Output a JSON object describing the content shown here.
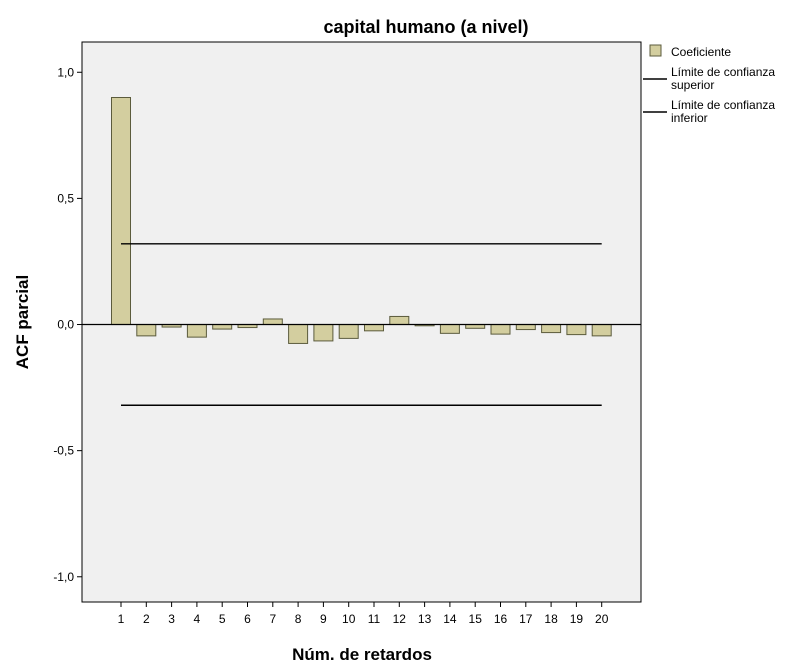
{
  "chart_data": {
    "type": "bar",
    "title": "capital humano (a nivel)",
    "xlabel": "Núm. de retardos",
    "ylabel": "ACF parcial",
    "categories": [
      "1",
      "2",
      "3",
      "4",
      "5",
      "6",
      "7",
      "8",
      "9",
      "10",
      "11",
      "12",
      "13",
      "14",
      "15",
      "16",
      "17",
      "18",
      "19",
      "20"
    ],
    "series": [
      {
        "name": "Coeficiente",
        "values": [
          0.9,
          -0.045,
          -0.01,
          -0.05,
          -0.018,
          -0.012,
          0.022,
          -0.075,
          -0.065,
          -0.055,
          -0.025,
          0.032,
          -0.005,
          -0.035,
          -0.015,
          -0.038,
          -0.02,
          -0.032,
          -0.04,
          -0.045
        ]
      }
    ],
    "confidence_limits": {
      "upper": {
        "name": "Límite de confianza superior",
        "value": 0.32
      },
      "lower": {
        "name": "Límite de confianza inferior",
        "value": -0.32
      }
    },
    "ylim": [
      -1.1,
      1.12
    ],
    "yticks": [
      1.0,
      0.5,
      0.0,
      -0.5,
      -1.0
    ],
    "ytick_labels": [
      "1,0",
      "0,5",
      "0,0",
      "-0,5",
      "-1,0"
    ],
    "legend_position": "right",
    "grid": false,
    "colors": {
      "plot_background": "#f0f0f0",
      "bar_fill": "#d3ce9f",
      "bar_stroke": "#5b5b3c",
      "line": "#000000"
    }
  }
}
